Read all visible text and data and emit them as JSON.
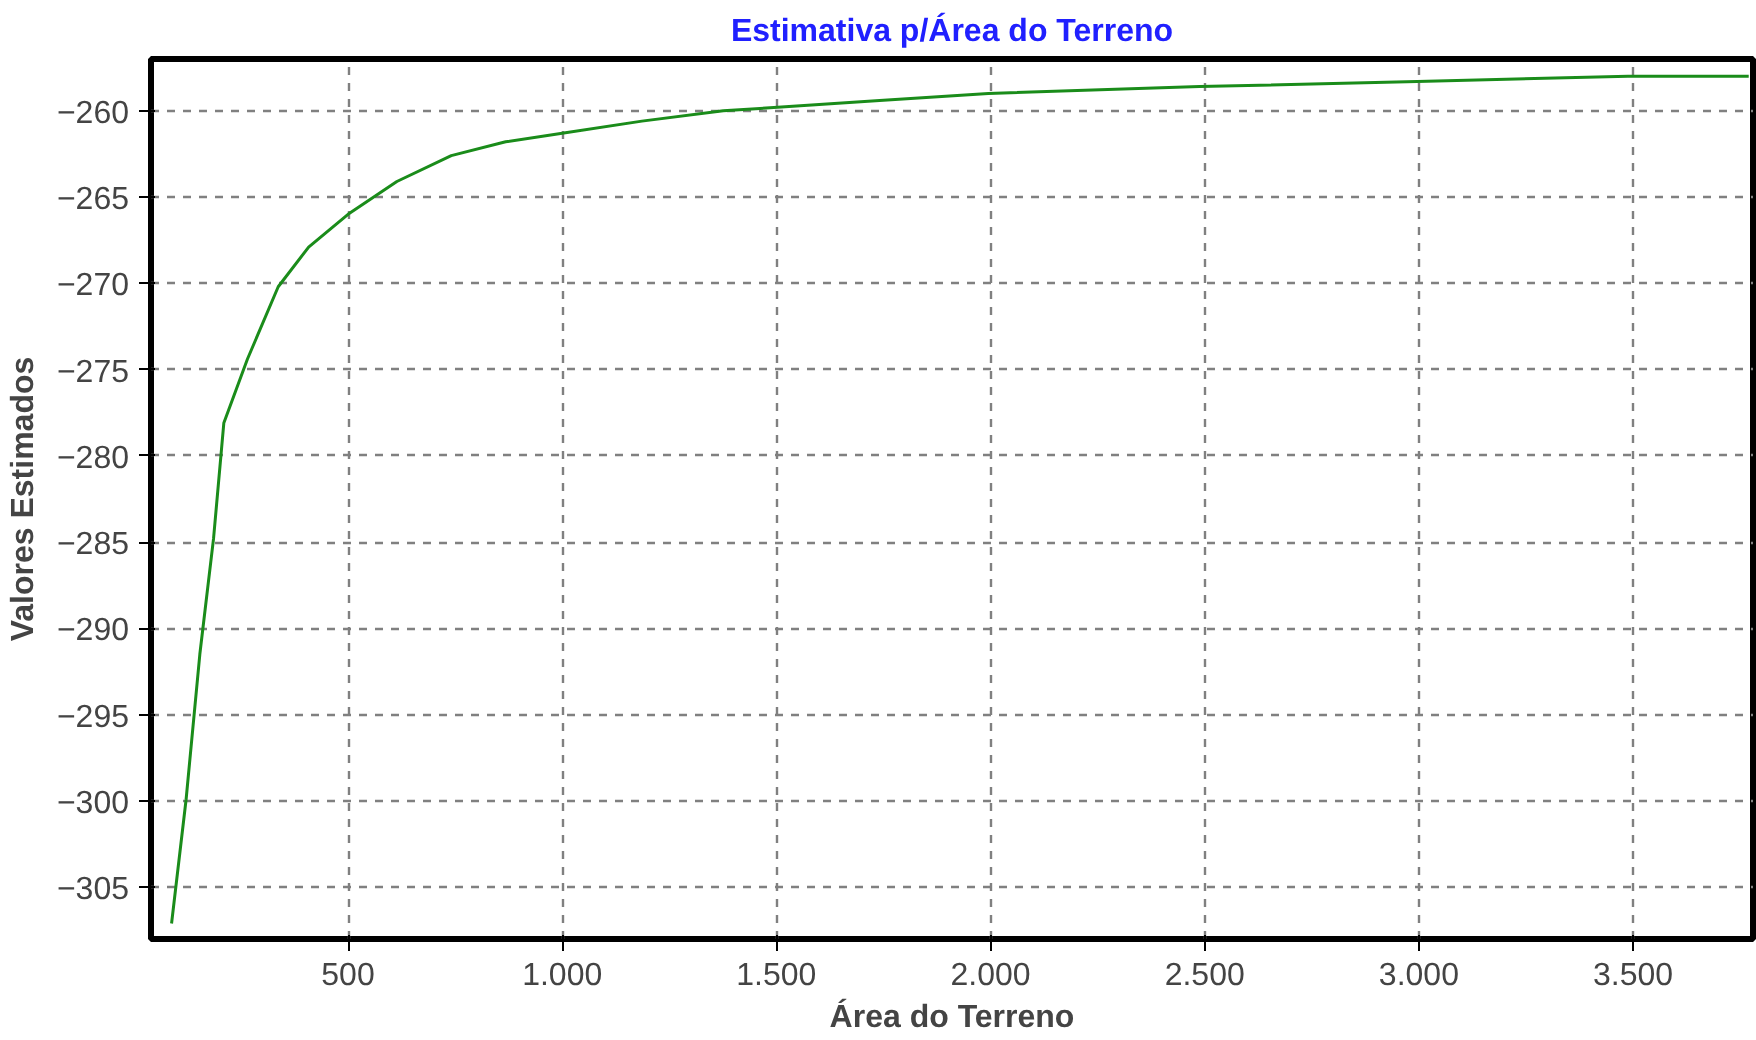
{
  "chart_data": {
    "type": "line",
    "title": "Estimativa p/Área do Terreno",
    "xlabel": "Área do Terreno",
    "ylabel": "Valores Estimados",
    "x": [
      88,
      122,
      154,
      186,
      210,
      265,
      337,
      408,
      500,
      614,
      741,
      868,
      1000,
      1186,
      1376,
      1503,
      1741,
      1995,
      2488,
      2996,
      3488,
      3770
    ],
    "series": [
      {
        "color": "#1a8c1a",
        "values": [
          -307.1,
          -299.9,
          -291.5,
          -284.8,
          -278.1,
          -274.4,
          -270.2,
          -267.9,
          -266,
          -264.1,
          -262.6,
          -261.8,
          -261.3,
          -260.6,
          -260,
          -259.8,
          -259.4,
          -259.0,
          -258.6,
          -258.3,
          -258.0,
          -258.0
        ]
      }
    ],
    "xlim": [
      40,
      3780
    ],
    "ylim": [
      -308,
      -257
    ],
    "xticks": [
      500,
      {
        "value": 1000,
        "label": "1.000"
      },
      {
        "value": 1500,
        "label": "1.500"
      },
      {
        "value": 2000,
        "label": "2.000"
      },
      {
        "value": 2500,
        "label": "2.500"
      },
      {
        "value": 3000,
        "label": "3.000"
      },
      {
        "value": 3500,
        "label": "3.500"
      }
    ],
    "yticks": [
      -305,
      -300,
      -295,
      -290,
      -285,
      -280,
      -275,
      -270,
      -265,
      -260
    ],
    "grid": true,
    "marker": "none",
    "line_style": "solid"
  }
}
